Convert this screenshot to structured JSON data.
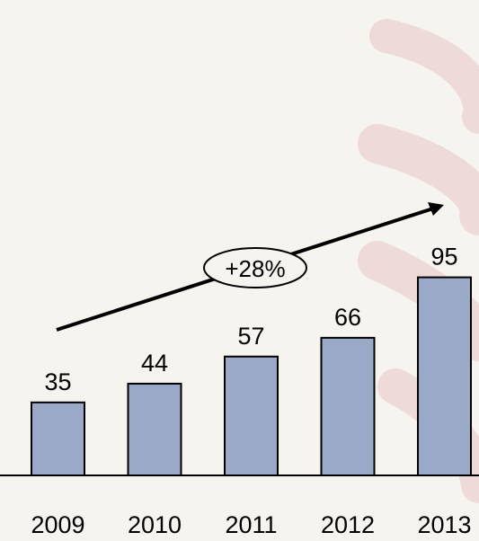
{
  "chart_data": {
    "type": "bar",
    "categories": [
      "2009",
      "2010",
      "2011",
      "2012",
      "2013"
    ],
    "values": [
      35,
      44,
      57,
      66,
      95
    ],
    "ylim": [
      0,
      110
    ],
    "grid": false,
    "annotation": {
      "text": "+28%",
      "kind": "trend-arrow"
    },
    "bar_color": "#9aa9c8"
  }
}
